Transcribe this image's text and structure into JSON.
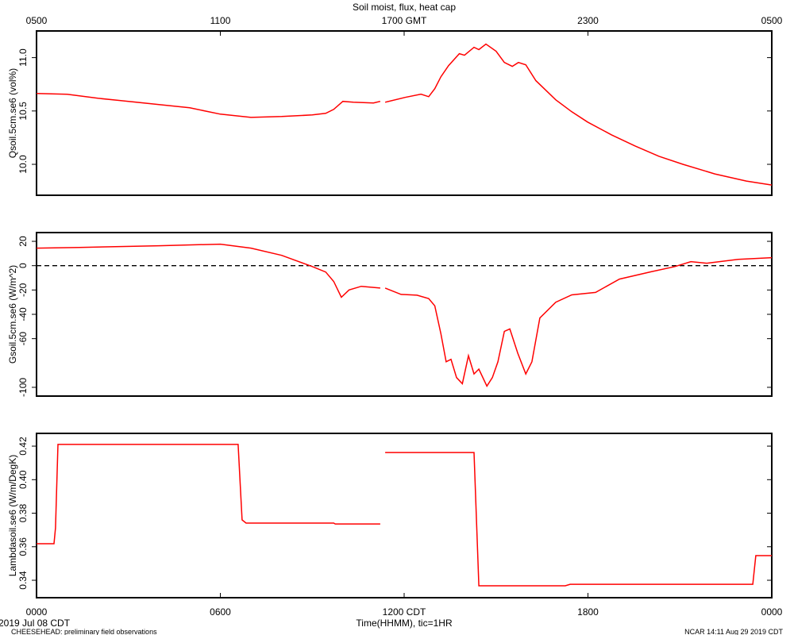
{
  "chart_data": [
    {
      "type": "line",
      "title": "Soil moist, flux, heat cap",
      "ylabel": "Qsoil.5cm.se6 (vol%)",
      "xlim": [
        0,
        24
      ],
      "ylim": [
        9.71,
        11.25
      ],
      "yticks": [
        {
          "value": 10.0,
          "label": "10.0"
        },
        10.5,
        {
          "value": 11.0,
          "label": "11.0"
        }
      ],
      "x2ticks": [
        {
          "value": 0,
          "label": "0500"
        },
        {
          "value": 6,
          "label": "1100"
        },
        {
          "value": 12,
          "label": "1700 GMT"
        },
        {
          "value": 18,
          "label": "2300"
        },
        {
          "value": 24,
          "label": "0500"
        }
      ],
      "series": [
        {
          "name": "Qsoil.5cm.se6",
          "color": "#ff0000",
          "x": [
            0,
            1,
            2,
            3,
            4,
            5,
            6,
            7,
            8,
            9,
            9.44,
            9.7,
            10.0,
            10.34,
            11.0,
            11.22,
            11.3,
            11.38,
            12.03,
            12.55,
            12.8,
            13.0,
            13.2,
            13.45,
            13.8,
            13.97,
            14.28,
            14.44,
            14.67,
            15.0,
            15.27,
            15.53,
            15.73,
            15.97,
            16.3,
            16.95,
            17.47,
            17.99,
            18.77,
            19.54,
            20.32,
            21.1,
            22.14,
            23.17,
            24
          ],
          "values": [
            10.664,
            10.657,
            10.619,
            10.59,
            10.56,
            10.53,
            10.47,
            10.44,
            10.448,
            10.463,
            10.478,
            10.515,
            10.59,
            10.582,
            10.575,
            10.59,
            null,
            10.582,
            10.627,
            10.657,
            10.634,
            10.709,
            10.821,
            10.925,
            11.037,
            11.022,
            11.097,
            11.075,
            11.127,
            11.06,
            10.955,
            10.918,
            10.955,
            10.933,
            10.784,
            10.604,
            10.493,
            10.396,
            10.276,
            10.172,
            10.075,
            10.0,
            9.91,
            9.843,
            9.806
          ]
        }
      ]
    },
    {
      "type": "line",
      "ylabel": "Gsoil.5cm.se6 (W/m^2)",
      "xlim": [
        0,
        24
      ],
      "ylim": [
        -107.2,
        27.2
      ],
      "yticks": [
        -100,
        -60,
        -40,
        -20,
        0,
        20
      ],
      "hline": {
        "value": 0,
        "style": "dashed"
      },
      "series": [
        {
          "name": "Gsoil.5cm.se6",
          "color": "#ff0000",
          "x": [
            0,
            1.4,
            4,
            6,
            7,
            8,
            9,
            9.44,
            9.7,
            9.95,
            10.2,
            10.6,
            11.22,
            11.3,
            11.38,
            11.9,
            12.42,
            12.8,
            13.0,
            13.2,
            13.37,
            13.53,
            13.71,
            13.9,
            14.1,
            14.28,
            14.44,
            14.7,
            14.88,
            15.06,
            15.27,
            15.45,
            15.71,
            15.97,
            16.17,
            16.43,
            16.95,
            17.47,
            18.25,
            19.03,
            20.06,
            20.84,
            21.36,
            21.88,
            22.9,
            24
          ],
          "values": [
            14.4,
            15,
            16.4,
            17.7,
            14.4,
            8.5,
            -0.7,
            -5.2,
            -13,
            -26,
            -20,
            -17,
            -18.4,
            null,
            -18.4,
            -23.6,
            -24.3,
            -27,
            -33,
            -56,
            -79,
            -77,
            -92,
            -97,
            -74,
            -89,
            -85,
            -99,
            -92,
            -79,
            -54,
            -52,
            -72,
            -89,
            -79,
            -43,
            -30,
            -24,
            -22,
            -11,
            -5,
            -0.7,
            3.3,
            2,
            5.2,
            6.6
          ]
        }
      ]
    },
    {
      "type": "line",
      "ylabel": "Lambdasoil.se6 (W/m/DegK)",
      "xlabel": "Time(HHMM), tic=1HR",
      "xlim": [
        0,
        24
      ],
      "ylim": [
        0.3296,
        0.4276
      ],
      "yticks": [
        0.34,
        0.36,
        0.38,
        {
          "value": 0.4,
          "label": "0.40"
        },
        0.42
      ],
      "xticks": [
        {
          "value": 0,
          "label": "0000"
        },
        {
          "value": 6,
          "label": "0600"
        },
        {
          "value": 12,
          "label": "1200 CDT"
        },
        {
          "value": 18,
          "label": "1800"
        },
        {
          "value": 24,
          "label": "0000"
        }
      ],
      "annotations": [
        "2019 Jul 08 CDT",
        "CHEESEHEAD: preliminary field observations",
        "NCAR 14:11 Aug 29 2019 CDT"
      ],
      "series": [
        {
          "name": "Lambdasoil.se6",
          "color": "#ff0000",
          "x": [
            0,
            0.57,
            0.62,
            0.7,
            6.58,
            6.71,
            6.84,
            9.7,
            9.75,
            11.22,
            11.3,
            11.38,
            14.28,
            14.44,
            17.26,
            17.42,
            23.38,
            23.48,
            24
          ],
          "values": [
            0.3618,
            0.3618,
            0.3712,
            0.421,
            0.421,
            0.376,
            0.3741,
            0.3741,
            0.3736,
            0.3736,
            null,
            0.4162,
            0.4162,
            0.3367,
            0.3367,
            0.3376,
            0.3376,
            0.3547,
            0.3547
          ]
        }
      ]
    }
  ]
}
